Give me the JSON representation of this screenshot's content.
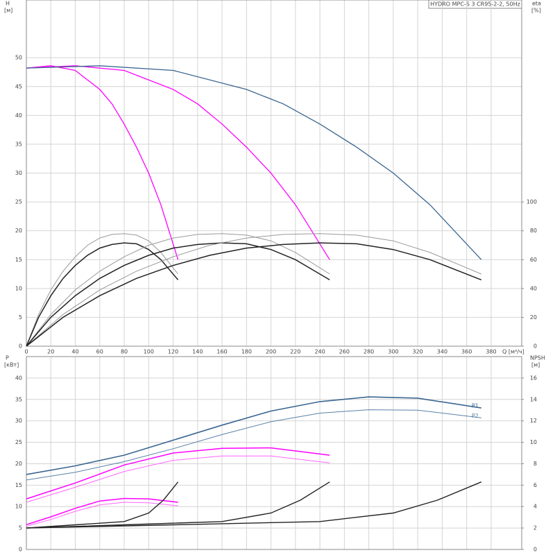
{
  "chart_data": [
    {
      "type": "line",
      "title": "HYDRO MPC-S 3 CR95-2-2, 50Hz",
      "y_label": "H",
      "y_unit": "[м]",
      "y2_label": "eta",
      "y2_unit": "[%]",
      "x_label": "Q [м³/ч]",
      "xlim": [
        0,
        405
      ],
      "xticks": [
        0,
        20,
        40,
        60,
        80,
        100,
        120,
        140,
        160,
        180,
        200,
        220,
        240,
        260,
        280,
        300,
        320,
        340,
        360,
        380
      ],
      "show_xtick_labels": true,
      "ylim": [
        0,
        60
      ],
      "yticks": [
        0,
        5,
        10,
        15,
        20,
        25,
        30,
        35,
        40,
        45,
        50
      ],
      "y2lim": [
        0,
        240
      ],
      "y2ticks": [
        0,
        20,
        40,
        60,
        80,
        100
      ],
      "grid": true,
      "series": [
        {
          "color": "#ff00ff",
          "width": 1.3,
          "x": [
            0,
            20,
            40,
            60,
            70,
            80,
            90,
            100,
            110,
            124
          ],
          "values": [
            48.2,
            48.6,
            47.8,
            44.5,
            42,
            38.5,
            34.5,
            30,
            24.5,
            15
          ]
        },
        {
          "color": "#ff00ff",
          "width": 1.3,
          "x": [
            0,
            40,
            80,
            120,
            140,
            160,
            180,
            200,
            220,
            248
          ],
          "values": [
            48.2,
            48.6,
            47.8,
            44.5,
            42,
            38.5,
            34.5,
            30,
            24.5,
            15
          ]
        },
        {
          "color": "#3a6590",
          "width": 1.3,
          "x": [
            0,
            60,
            120,
            180,
            210,
            240,
            270,
            300,
            330,
            372
          ],
          "values": [
            48.2,
            48.6,
            47.8,
            44.5,
            42,
            38.5,
            34.5,
            30,
            24.5,
            15
          ]
        },
        {
          "color": "#999999",
          "width": 1,
          "axis": "y2",
          "x": [
            0,
            10,
            20,
            30,
            40,
            50,
            60,
            70,
            80,
            90,
            100,
            110,
            124
          ],
          "values": [
            0,
            22,
            39,
            52,
            62,
            70,
            75,
            77.5,
            78,
            77,
            73,
            65,
            50
          ]
        },
        {
          "color": "#222222",
          "width": 1.5,
          "axis": "y2",
          "x": [
            0,
            10,
            20,
            30,
            40,
            50,
            60,
            70,
            80,
            90,
            100,
            110,
            124
          ],
          "values": [
            0,
            20,
            35,
            47,
            56,
            63,
            68,
            70.5,
            71.6,
            71,
            67,
            60,
            46
          ]
        },
        {
          "color": "#999999",
          "width": 1,
          "axis": "y2",
          "x": [
            0,
            20,
            40,
            60,
            80,
            100,
            120,
            140,
            160,
            180,
            200,
            220,
            248
          ],
          "values": [
            0,
            22,
            39,
            52,
            62,
            70,
            75,
            77.5,
            78,
            77,
            73,
            65,
            50
          ]
        },
        {
          "color": "#222222",
          "width": 1.5,
          "axis": "y2",
          "x": [
            0,
            20,
            40,
            60,
            80,
            100,
            120,
            140,
            160,
            180,
            200,
            220,
            248
          ],
          "values": [
            0,
            20,
            35,
            47,
            56,
            63,
            68,
            70.5,
            71.6,
            71,
            67,
            60,
            46
          ]
        },
        {
          "color": "#999999",
          "width": 1,
          "axis": "y2",
          "x": [
            0,
            30,
            60,
            90,
            120,
            150,
            180,
            210,
            240,
            270,
            300,
            330,
            372
          ],
          "values": [
            0,
            22,
            39,
            52,
            62,
            70,
            75,
            77.5,
            78,
            77,
            73,
            65,
            50
          ]
        },
        {
          "color": "#222222",
          "width": 1.5,
          "axis": "y2",
          "x": [
            0,
            30,
            60,
            90,
            120,
            150,
            180,
            210,
            240,
            270,
            300,
            330,
            372
          ],
          "values": [
            0,
            20,
            35,
            47,
            56,
            63,
            68,
            70.5,
            71.6,
            71,
            67,
            60,
            46
          ]
        }
      ]
    },
    {
      "type": "line",
      "y_label": "P",
      "y_unit": "[кВт]",
      "y2_label": "NPSH",
      "y2_unit": "[м]",
      "xlim": [
        0,
        405
      ],
      "xticks": [
        0,
        20,
        40,
        60,
        80,
        100,
        120,
        140,
        160,
        180,
        200,
        220,
        240,
        260,
        280,
        300,
        320,
        340,
        360,
        380
      ],
      "show_xtick_labels": false,
      "ylim": [
        0,
        45
      ],
      "yticks": [
        0,
        5,
        10,
        15,
        20,
        25,
        30,
        35,
        40
      ],
      "y2lim": [
        0,
        18
      ],
      "y2ticks": [
        0,
        2,
        4,
        6,
        8,
        10,
        12,
        14,
        16
      ],
      "grid": true,
      "series": [
        {
          "name": "P1",
          "color": "#3a6590",
          "width": 1.6,
          "x": [
            0,
            40,
            80,
            120,
            160,
            200,
            240,
            280,
            320,
            372
          ],
          "values": [
            17.5,
            19.5,
            22,
            25.5,
            29,
            32.3,
            34.5,
            35.6,
            35.3,
            33
          ]
        },
        {
          "name": "P2",
          "color": "#5a80a8",
          "width": 1,
          "x": [
            0,
            40,
            80,
            120,
            160,
            200,
            240,
            280,
            320,
            372
          ],
          "values": [
            16.2,
            18,
            20.5,
            23.5,
            26.8,
            29.8,
            31.8,
            32.6,
            32.5,
            30.7
          ]
        },
        {
          "color": "#ff00ff",
          "width": 1.5,
          "x": [
            0,
            40,
            80,
            120,
            160,
            200,
            248
          ],
          "values": [
            11.8,
            15.5,
            19.7,
            22.5,
            23.6,
            23.7,
            22
          ]
        },
        {
          "color": "#ff66ff",
          "width": 1,
          "x": [
            0,
            40,
            80,
            120,
            160,
            200,
            248
          ],
          "values": [
            11,
            14.5,
            18.2,
            20.8,
            21.8,
            21.8,
            20.2
          ]
        },
        {
          "color": "#ff00ff",
          "width": 1.5,
          "x": [
            0,
            20,
            40,
            60,
            80,
            100,
            124
          ],
          "values": [
            5.8,
            7.6,
            9.6,
            11.3,
            11.9,
            11.8,
            11
          ]
        },
        {
          "color": "#ff66ff",
          "width": 1,
          "x": [
            0,
            20,
            40,
            60,
            80,
            100,
            124
          ],
          "values": [
            5.4,
            7,
            8.9,
            10.4,
            11,
            10.9,
            10.2
          ]
        },
        {
          "color": "#222222",
          "width": 1.4,
          "axis": "y2",
          "x": [
            0,
            40,
            80,
            100,
            112,
            124
          ],
          "values": [
            2,
            2.3,
            2.6,
            3.4,
            4.6,
            6.3
          ]
        },
        {
          "color": "#222222",
          "width": 1.4,
          "axis": "y2",
          "x": [
            0,
            80,
            160,
            200,
            224,
            248
          ],
          "values": [
            2,
            2.3,
            2.6,
            3.4,
            4.6,
            6.3
          ]
        },
        {
          "color": "#222222",
          "width": 1.4,
          "axis": "y2",
          "x": [
            0,
            120,
            240,
            300,
            336,
            372
          ],
          "values": [
            2,
            2.3,
            2.6,
            3.4,
            4.6,
            6.3
          ]
        }
      ]
    }
  ]
}
